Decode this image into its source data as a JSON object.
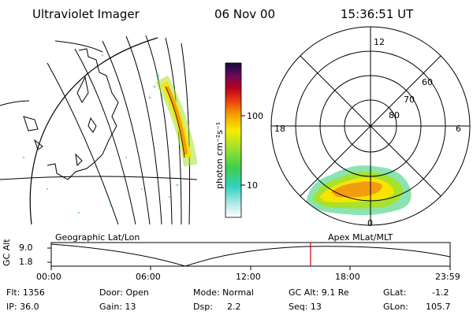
{
  "header": {
    "title": "Ultraviolet Imager",
    "date": "06 Nov 00",
    "time": "15:36:51 UT"
  },
  "colorbar": {
    "unit_label": "photon cm⁻²s⁻¹",
    "ticks": [
      "100",
      "10"
    ]
  },
  "polar": {
    "mlt_labels": [
      "12",
      "18",
      "6",
      "0"
    ],
    "lat_labels": [
      "60",
      "70",
      "80"
    ]
  },
  "projection_labels": {
    "left": "Geographic Lat/Lon",
    "right": "Apex MLat/MLT"
  },
  "altitude_plot": {
    "axis_label": "GC Alt",
    "y_ticks": [
      "9.0",
      "1.8"
    ],
    "x_ticks": [
      "00:00",
      "06:00",
      "12:00",
      "18:00",
      "23:59"
    ],
    "current_fraction": 0.65
  },
  "info": {
    "flt": "Flt: 1356",
    "ip": "IP: 36.0",
    "door": "Door: Open",
    "gain": "Gain: 13",
    "mode": "Mode: Normal",
    "dsp_label": "Dsp:",
    "dsp_value": "2.2",
    "gc_alt": "GC Alt: 9.1 Re",
    "seq": "Seq: 13",
    "glat_label": "GLat:",
    "glat_value": "-1.2",
    "glon_label": "GLon:",
    "glon_value": "105.7"
  },
  "colors": {
    "marker": "#cc0000",
    "aurora_hot": "#f39c12",
    "aurora_warm": "#f7e400",
    "aurora_mid": "#a6e22e",
    "aurora_cool": "#2ecc71"
  }
}
